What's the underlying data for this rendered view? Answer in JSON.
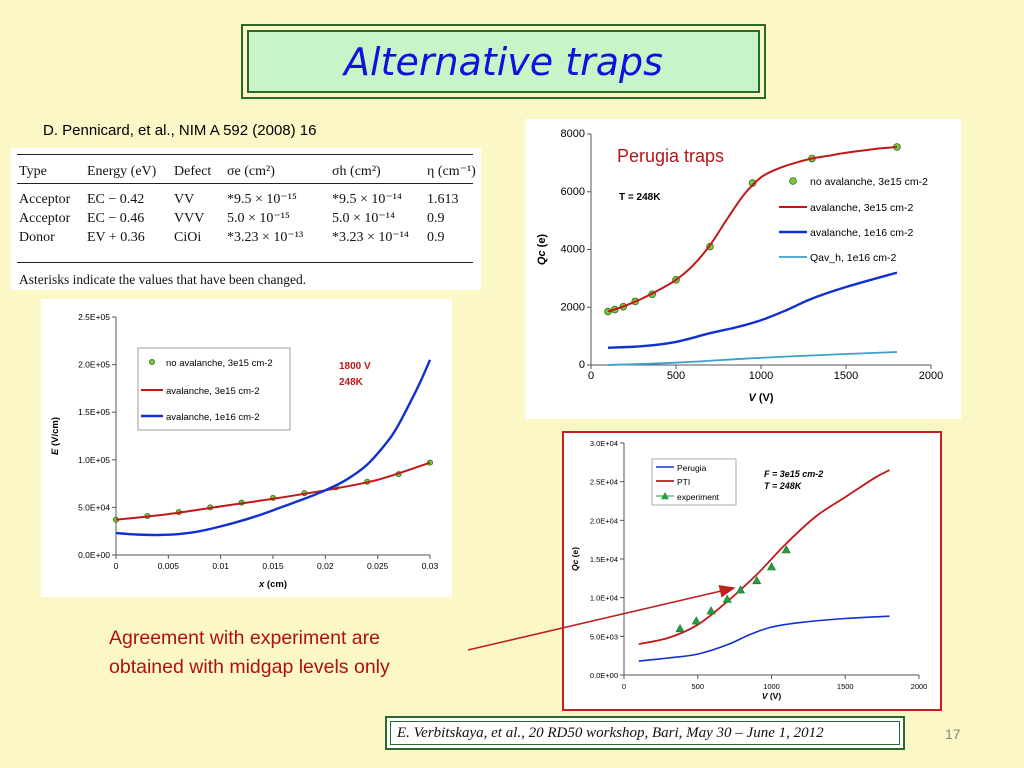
{
  "slide": {
    "title": "Alternative traps",
    "reference": "D. Pennicard, et al., NIM A 592 (2008) 16",
    "agreement_line1": "Agreement with experiment are",
    "agreement_line2": "obtained with midgap levels only",
    "footer": "E. Verbitskaya, et al., 20 RD50 workshop, Bari, May 30 – June 1, 2012",
    "page_number": "17"
  },
  "trap_table": {
    "headers": [
      "Type",
      "Energy (eV)",
      "Defect",
      "σe (cm²)",
      "σh (cm²)",
      "η (cm⁻¹)"
    ],
    "rows": [
      [
        "Acceptor",
        "EC − 0.42",
        "VV",
        "*9.5 × 10⁻¹⁵",
        "*9.5 × 10⁻¹⁴",
        "1.613"
      ],
      [
        "Acceptor",
        "EC − 0.46",
        "VVV",
        "5.0 × 10⁻¹⁵",
        "5.0 × 10⁻¹⁴",
        "0.9"
      ],
      [
        "Donor",
        "EV + 0.36",
        "CiOi",
        "*3.23 × 10⁻¹³",
        "*3.23 × 10⁻¹⁴",
        "0.9"
      ]
    ],
    "note": "Asterisks indicate the values that have been changed."
  },
  "chart_data": [
    {
      "type": "line",
      "title": "Perugia traps",
      "annotation": "T = 248K",
      "xlabel": "V (V)",
      "ylabel": "Qc (e)",
      "xlim": [
        0,
        2000
      ],
      "ylim": [
        0,
        8000
      ],
      "xticks": [
        "0",
        "500",
        "1000",
        "1500",
        "2000"
      ],
      "yticks": [
        "0",
        "2000",
        "4000",
        "6000",
        "8000"
      ],
      "colors": {
        "no_avalanche": "#7cc83c",
        "avalanche_3e15": "#c01818",
        "avalanche_1e16": "#1030d0",
        "qav_h": "#3ca0c8"
      },
      "series": [
        {
          "name": "no avalanche, 3e15 cm-2",
          "style": "markers",
          "x": [
            100,
            140,
            190,
            260,
            360,
            500,
            700,
            950,
            1300,
            1800
          ],
          "y": [
            1850,
            1920,
            2020,
            2200,
            2450,
            2950,
            4100,
            6300,
            7150,
            7550
          ]
        },
        {
          "name": "avalanche, 3e15 cm-2",
          "style": "line",
          "x": [
            100,
            200,
            300,
            400,
            500,
            600,
            700,
            800,
            900,
            1000,
            1100,
            1200,
            1300,
            1400,
            1500,
            1600,
            1700,
            1800
          ],
          "y": [
            1850,
            2050,
            2300,
            2600,
            2950,
            3450,
            4150,
            5050,
            5900,
            6500,
            6800,
            7000,
            7150,
            7250,
            7350,
            7430,
            7500,
            7550
          ]
        },
        {
          "name": "avalanche, 1e16 cm-2",
          "style": "line",
          "x": [
            100,
            300,
            500,
            700,
            850,
            1000,
            1150,
            1300,
            1500,
            1800
          ],
          "y": [
            600,
            650,
            800,
            1100,
            1300,
            1550,
            1900,
            2300,
            2700,
            3200
          ]
        },
        {
          "name": "Qav_h, 1e16 cm-2",
          "style": "line",
          "x": [
            100,
            500,
            1000,
            1500,
            1800
          ],
          "y": [
            0,
            80,
            250,
            380,
            450
          ]
        }
      ],
      "legend_position": "right"
    },
    {
      "type": "line",
      "annotation": [
        "1800 V",
        "248K"
      ],
      "xlabel": "x (cm)",
      "ylabel": "E (V/cm)",
      "xlim": [
        0,
        0.03
      ],
      "ylim": [
        0,
        250000
      ],
      "xticks": [
        "0",
        "0.005",
        "0.01",
        "0.015",
        "0.02",
        "0.025",
        "0.03"
      ],
      "yticks": [
        "0.0E+00",
        "5.0E+04",
        "1.0E+05",
        "1.5E+05",
        "2.0E+05",
        "2.5E+05"
      ],
      "series": [
        {
          "name": "no avalanche, 3e15 cm-2",
          "style": "markers",
          "x": [
            0,
            0.003,
            0.006,
            0.009,
            0.012,
            0.015,
            0.018,
            0.021,
            0.024,
            0.027,
            0.03
          ],
          "y": [
            37000,
            41000,
            45000,
            50000,
            55000,
            60000,
            65000,
            71000,
            77000,
            85000,
            97000
          ]
        },
        {
          "name": "avalanche, 3e15 cm-2",
          "style": "line",
          "x": [
            0,
            0.005,
            0.01,
            0.015,
            0.02,
            0.025,
            0.03
          ],
          "y": [
            37000,
            43000,
            51000,
            59000,
            68000,
            79000,
            97000
          ]
        },
        {
          "name": "avalanche, 1e16 cm-2",
          "style": "line",
          "x": [
            0,
            0.002,
            0.004,
            0.006,
            0.008,
            0.01,
            0.012,
            0.014,
            0.016,
            0.018,
            0.02,
            0.022,
            0.024,
            0.026,
            0.027,
            0.028,
            0.029,
            0.03
          ],
          "y": [
            23000,
            21500,
            21000,
            22000,
            25000,
            30000,
            36000,
            43000,
            51000,
            59000,
            68000,
            79000,
            95000,
            120000,
            137000,
            158000,
            180000,
            205000
          ]
        }
      ],
      "legend_position": "top-left"
    },
    {
      "type": "line",
      "annotation": [
        "F = 3e15 cm-2",
        "T = 248K"
      ],
      "xlabel": "V (V)",
      "ylabel": "Qc (e)",
      "xlim": [
        0,
        2000
      ],
      "ylim": [
        0,
        30000
      ],
      "xticks": [
        "0",
        "500",
        "1000",
        "1500",
        "2000"
      ],
      "yticks": [
        "0.0E+00",
        "5.0E+03",
        "1.0E+04",
        "1.5E+04",
        "2.0E+04",
        "2.5E+04",
        "3.0E+04"
      ],
      "series": [
        {
          "name": "Perugia",
          "style": "line",
          "x": [
            100,
            300,
            500,
            700,
            850,
            1000,
            1200,
            1500,
            1800
          ],
          "y": [
            1800,
            2200,
            2700,
            3900,
            5200,
            6200,
            6800,
            7300,
            7600
          ]
        },
        {
          "name": "PTI",
          "style": "line",
          "x": [
            100,
            300,
            500,
            700,
            900,
            1100,
            1300,
            1500,
            1700,
            1800
          ],
          "y": [
            4000,
            4800,
            6500,
            9500,
            13000,
            17000,
            20500,
            23000,
            25500,
            26500
          ]
        },
        {
          "name": "experiment",
          "style": "markers",
          "x": [
            380,
            490,
            590,
            700,
            790,
            900,
            1000,
            1100
          ],
          "y": [
            6000,
            7000,
            8300,
            9800,
            11000,
            12200,
            14000,
            16200
          ]
        }
      ],
      "legend_position": "top-left"
    }
  ]
}
